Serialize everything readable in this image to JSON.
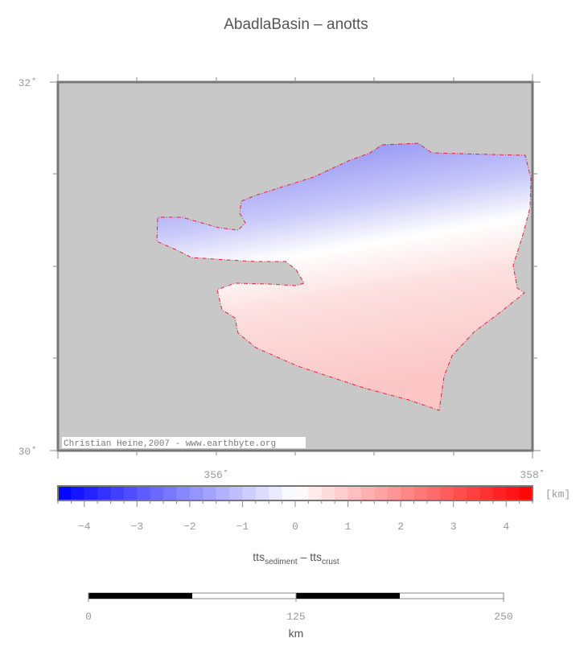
{
  "title": "AbadlaBasin – anotts",
  "map": {
    "lat_labels": [
      "32˚",
      "30˚"
    ],
    "lon_labels": [
      "356˚",
      "358˚"
    ],
    "credit": "Christian Heine,2007 - www.earthbyte.org",
    "background_color": "#c8c8c8",
    "outline_color": "#e8203c"
  },
  "colorbar": {
    "unit": "[km]",
    "ticks": [
      "−4",
      "−3",
      "−2",
      "−1",
      "0",
      "1",
      "2",
      "3",
      "4"
    ],
    "range": [
      -4.5,
      4.5
    ],
    "label_main": "tts",
    "label_sub1": "sediment",
    "label_mid": " – tts",
    "label_sub2": "crust",
    "low_color": "#0000ff",
    "mid_color": "#ffffff",
    "high_color": "#ff0000"
  },
  "scalebar": {
    "ticks": [
      "0",
      "125",
      "250"
    ],
    "unit": "km"
  }
}
